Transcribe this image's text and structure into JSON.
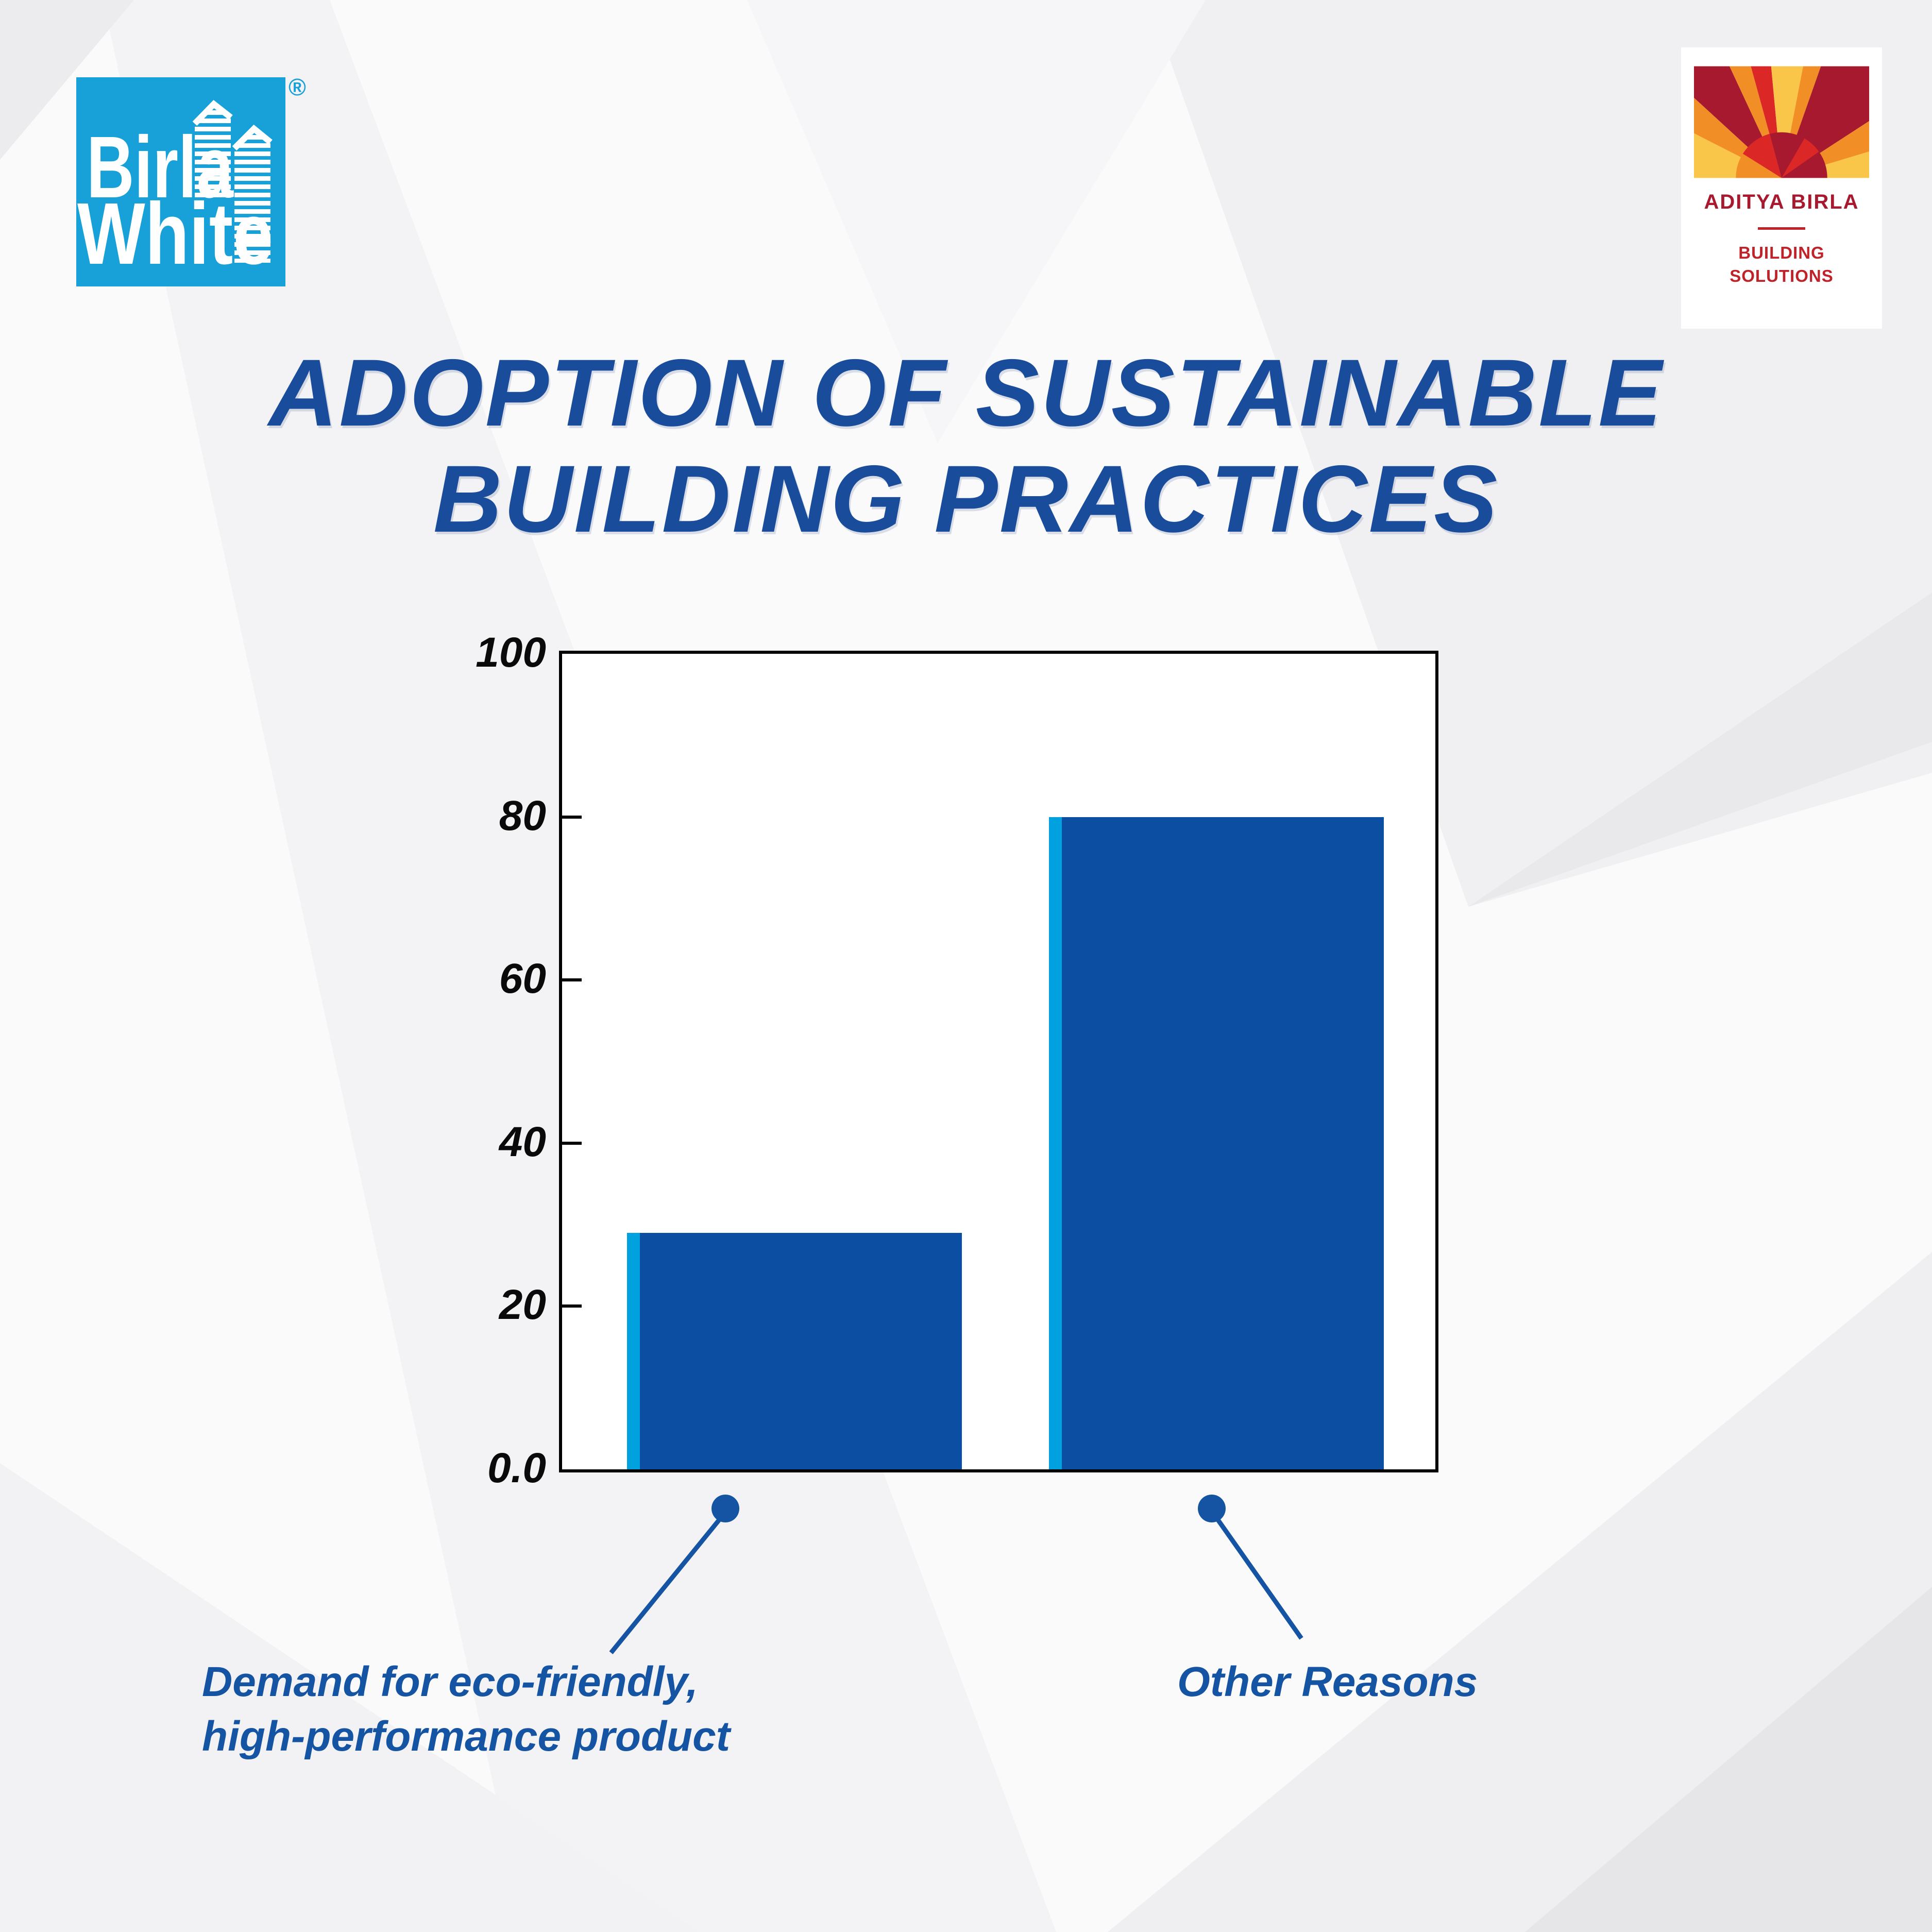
{
  "title": {
    "line1": "ADOPTION OF SUSTAINABLE",
    "line2": "BUILDING PRACTICES"
  },
  "brand": {
    "birla_white": {
      "word1": "Birla",
      "word2": "White",
      "registered": "®"
    },
    "aditya_birla": {
      "name": "ADITYA BIRLA",
      "division_line1": "BUILDING",
      "division_line2": "SOLUTIONS"
    }
  },
  "chart_data": {
    "type": "bar",
    "categories": [
      "Demand for eco-friendly, high-performance product",
      "Other Reasons"
    ],
    "values": [
      29,
      80
    ],
    "ylim": [
      0,
      100
    ],
    "ytick_values": [
      0,
      20,
      40,
      60,
      80,
      100
    ],
    "ytick_labels": [
      "0.0",
      "20",
      "40",
      "60",
      "80",
      "100"
    ],
    "xlabel": "",
    "ylabel": "",
    "grid": false,
    "legend": false,
    "bar_color": "#0B4EA2",
    "bar_accent_color": "#00A1DE",
    "plot_border_color": "#000000"
  },
  "callout_labels": [
    {
      "lines": [
        "Demand for eco-friendly,",
        "high-performance product"
      ]
    },
    {
      "lines": [
        "Other Reasons"
      ]
    }
  ],
  "colors": {
    "title_blue": "#1A4C9C",
    "callout_blue": "#1553A3",
    "logo_cyan": "#18A0D9",
    "ab_maroon": "#A6192E",
    "ab_red": "#DB2726",
    "ab_orange": "#F28E26",
    "ab_yellow": "#F9C64A"
  }
}
